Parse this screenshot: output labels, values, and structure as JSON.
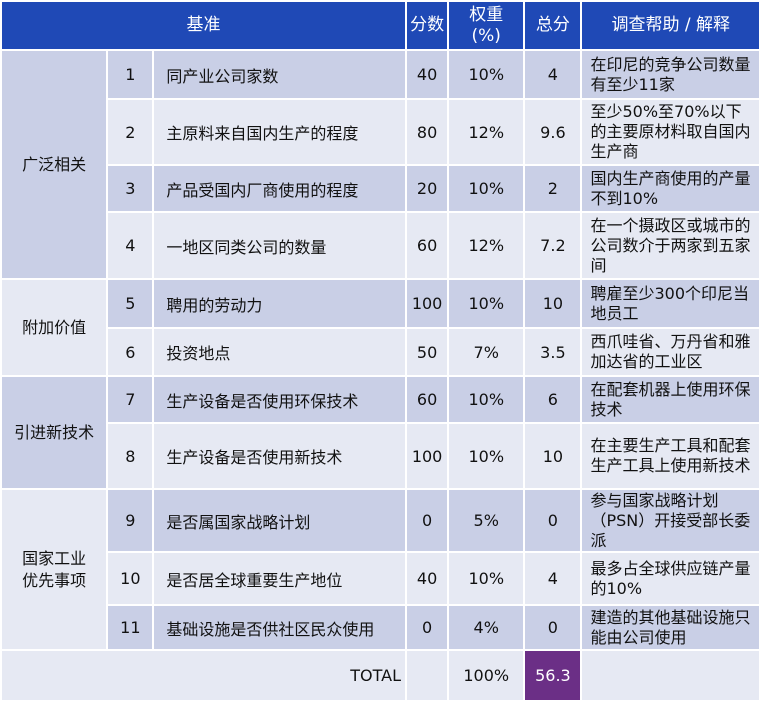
{
  "header": {
    "criteria": "基准",
    "score": "分数",
    "weight": "权重\n(%)",
    "total": "总分",
    "help": "调查帮助 / 解释"
  },
  "categories": [
    {
      "label": "广泛相关"
    },
    {
      "label": "附加价值"
    },
    {
      "label": "引进新技术"
    },
    {
      "label": "国家工业\n优先事项"
    }
  ],
  "rows": [
    {
      "no": "1",
      "criterion": "同产业公司家数",
      "score": "40",
      "weight": "10%",
      "total": "4",
      "help": "在印尼的竞争公司数量有至少11家"
    },
    {
      "no": "2",
      "criterion": "主原料来自国内生产的程度",
      "score": "80",
      "weight": "12%",
      "total": "9.6",
      "help": "至少50%至70%以下的主要原材料取自国内生产商"
    },
    {
      "no": "3",
      "criterion": "产品受国内厂商使用的程度",
      "score": "20",
      "weight": "10%",
      "total": "2",
      "help": "国内生产商使用的产量不到10%"
    },
    {
      "no": "4",
      "criterion": "一地区同类公司的数量",
      "score": "60",
      "weight": "12%",
      "total": "7.2",
      "help": "在一个摄政区或城市的公司数介于两家到五家间"
    },
    {
      "no": "5",
      "criterion": "聘用的劳动力",
      "score": "100",
      "weight": "10%",
      "total": "10",
      "help": "聘雇至少300个印尼当地员工"
    },
    {
      "no": "6",
      "criterion": "投资地点",
      "score": "50",
      "weight": "7%",
      "total": "3.5",
      "help": "西爪哇省、万丹省和雅加达省的工业区"
    },
    {
      "no": "7",
      "criterion": "生产设备是否使用环保技术",
      "score": "60",
      "weight": "10%",
      "total": "6",
      "help": "在配套机器上使用环保技术"
    },
    {
      "no": "8",
      "criterion": "生产设备是否使用新技术",
      "score": "100",
      "weight": "10%",
      "total": "10",
      "help": "在主要生产工具和配套生产工具上使用新技术"
    },
    {
      "no": "9",
      "criterion": "是否属国家战略计划",
      "score": "0",
      "weight": "5%",
      "total": "0",
      "help": "参与国家战略计划（PSN）开接受部长委派"
    },
    {
      "no": "10",
      "criterion": "是否居全球重要生产地位",
      "score": "40",
      "weight": "10%",
      "total": "4",
      "help": "最多占全球供应链产量的10%"
    },
    {
      "no": "11",
      "criterion": "基础设施是否供社区民众使用",
      "score": "0",
      "weight": "4%",
      "total": "0",
      "help": "建造的其他基础设施只能由公司使用"
    }
  ],
  "footer": {
    "label": "TOTAL",
    "weight": "100%",
    "total": "56.3"
  },
  "colors": {
    "header_bg": "#1f49b6",
    "cell_dark": "#c9cfe6",
    "cell_light": "#e6e9f3",
    "grand_total_bg": "#6b2f86"
  }
}
